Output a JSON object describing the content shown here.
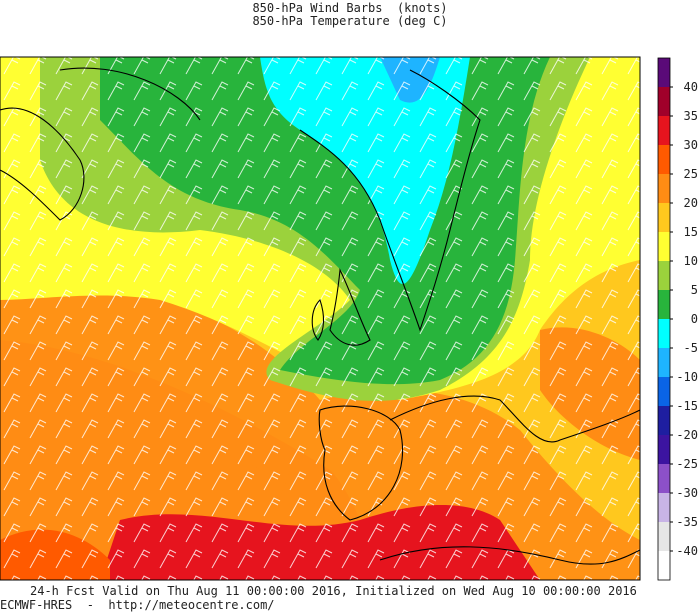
{
  "header": {
    "title": "850-hPa Wind Barbs  (knots)",
    "subtitle": "850-hPa Temperature (deg C)"
  },
  "colorbar": {
    "ticks": [
      40,
      35,
      30,
      25,
      20,
      15,
      10,
      5,
      0,
      -5,
      -10,
      -15,
      -20,
      -25,
      -30,
      -35,
      -40
    ],
    "colors": [
      "#5a0a78",
      "#a0002a",
      "#e6141e",
      "#ff5a00",
      "#ff8c14",
      "#ffc81e",
      "#ffff32",
      "#9bd23c",
      "#28b43c",
      "#00ffff",
      "#1eb4ff",
      "#0a64e6",
      "#1e1ea0",
      "#3c14a0",
      "#8c50c8",
      "#c8b4e6",
      "#e6e6e6",
      "#ffffff"
    ]
  },
  "footer": {
    "valid": "24-h Fcst Valid on Thu Aug 11 00:00:00 2016, Initialized on Wed Aug 10 00:00:00 2016",
    "source": "ECMWF-HRES  -  http://meteocentre.com/"
  }
}
